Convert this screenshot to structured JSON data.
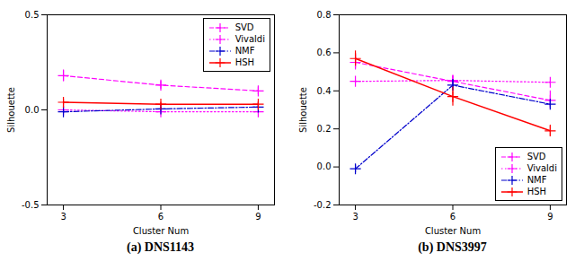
{
  "chart_data": [
    {
      "type": "line",
      "title": "(a) DNS1143",
      "xlabel": "Cluster Num",
      "ylabel": "Silhouette",
      "x": [
        3,
        6,
        9
      ],
      "xlim": [
        2.5,
        9.5
      ],
      "xticks": [
        3,
        6,
        9
      ],
      "ylim": [
        -0.5,
        0.5
      ],
      "yticks": [
        -0.5,
        {
          "value": 0,
          "label": "0.0"
        },
        0.5
      ],
      "grid": false,
      "legend": "upper right",
      "series": [
        {
          "name": "SVD",
          "color": "#ff00ff",
          "line_style": "dashed",
          "marker": "plus",
          "values": [
            0.18,
            0.13,
            0.1
          ],
          "errors": [
            0.03,
            0.02,
            0.02
          ]
        },
        {
          "name": "Vivaldi",
          "color": "#ff00ff",
          "line_style": "dotted",
          "marker": "plus",
          "values": [
            0.0,
            -0.01,
            -0.01
          ],
          "errors": [
            0.005,
            0.005,
            0.005
          ]
        },
        {
          "name": "NMF",
          "color": "#0000cc",
          "line_style": "dashdot",
          "marker": "plus",
          "values": [
            -0.01,
            0.005,
            0.015
          ],
          "errors": [
            0.008,
            0.008,
            0.008
          ]
        },
        {
          "name": "HSH",
          "color": "#ff0000",
          "line_style": "solid",
          "marker": "plus",
          "values": [
            0.04,
            0.03,
            0.03
          ],
          "errors": [
            0.015,
            0.01,
            0.01
          ]
        }
      ]
    },
    {
      "type": "line",
      "title": "(b) DNS3997",
      "xlabel": "Cluster Num",
      "ylabel": "Silhouette",
      "x": [
        3,
        6,
        9
      ],
      "xlim": [
        2.5,
        9.5
      ],
      "xticks": [
        3,
        6,
        9
      ],
      "ylim": [
        -0.2,
        0.8
      ],
      "yticks": [
        -0.2,
        {
          "value": 0,
          "label": "0.0"
        },
        0.2,
        0.4,
        0.6,
        0.8
      ],
      "grid": false,
      "legend": "lower right",
      "series": [
        {
          "name": "SVD",
          "color": "#ff00ff",
          "line_style": "dashed",
          "marker": "plus",
          "values": [
            0.55,
            0.45,
            0.35
          ],
          "errors": [
            0.04,
            0.03,
            0.05
          ]
        },
        {
          "name": "Vivaldi",
          "color": "#ff00ff",
          "line_style": "dotted",
          "marker": "plus",
          "values": [
            0.45,
            0.455,
            0.445
          ],
          "errors": [
            0.005,
            0.005,
            0.005
          ]
        },
        {
          "name": "NMF",
          "color": "#0000cc",
          "line_style": "dashdot",
          "marker": "plus",
          "values": [
            -0.01,
            0.43,
            0.33
          ],
          "errors": [
            0.02,
            0.03,
            0.02
          ]
        },
        {
          "name": "HSH",
          "color": "#ff0000",
          "line_style": "solid",
          "marker": "plus",
          "values": [
            0.57,
            0.37,
            0.19
          ],
          "errors": [
            0.04,
            0.05,
            0.03
          ]
        }
      ]
    }
  ]
}
